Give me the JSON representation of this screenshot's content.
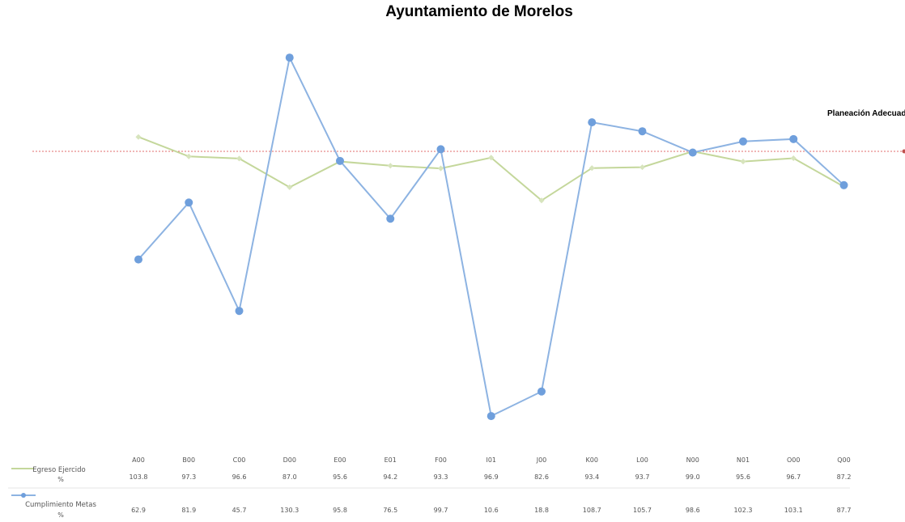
{
  "chart_data": {
    "type": "line",
    "title": "Ayuntamiento de Morelos",
    "categories": [
      "A00",
      "B00",
      "C00",
      "D00",
      "E00",
      "E01",
      "F00",
      "I01",
      "J00",
      "K00",
      "L00",
      "N00",
      "N01",
      "O00",
      "Q00"
    ],
    "series": [
      {
        "name": "Egreso Ejercido %",
        "color": "#c4d79b",
        "values": [
          103.8,
          97.3,
          96.6,
          87.0,
          95.6,
          94.2,
          93.3,
          96.9,
          82.6,
          93.4,
          93.7,
          99.0,
          95.6,
          96.7,
          87.2
        ],
        "value_labels": [
          "103.8",
          "97.3",
          "96.6",
          "87.0",
          "95.6",
          "94.2",
          "93.3",
          "96.9",
          "82.6",
          "93.4",
          "93.7",
          "99.0",
          "95.6",
          "96.7",
          "87.2"
        ]
      },
      {
        "name": "Cumplimiento Metas %",
        "color": "#8db3e2",
        "values": [
          62.9,
          81.9,
          45.7,
          130.3,
          95.8,
          76.5,
          99.7,
          10.6,
          18.8,
          108.7,
          105.7,
          98.6,
          102.3,
          103.1,
          87.7
        ],
        "value_labels": [
          "62.9",
          "81.9",
          "45.7",
          "130.3",
          "95.8",
          "76.5",
          "99.7",
          "10.6",
          "18.8",
          "108.7",
          "105.7",
          "98.6",
          "102.3",
          "103.1",
          "87.7"
        ]
      }
    ],
    "reference_line": {
      "label": "Planeación Adecuada",
      "value": 99.0,
      "color": "#e26b6b"
    },
    "ylim": [
      0,
      135
    ],
    "grid": false,
    "legend": "bottom-left data table"
  },
  "legend_labels": {
    "s0": [
      "Egreso Ejercido",
      "%"
    ],
    "s1": [
      "Cumplimiento Metas",
      "%"
    ]
  }
}
